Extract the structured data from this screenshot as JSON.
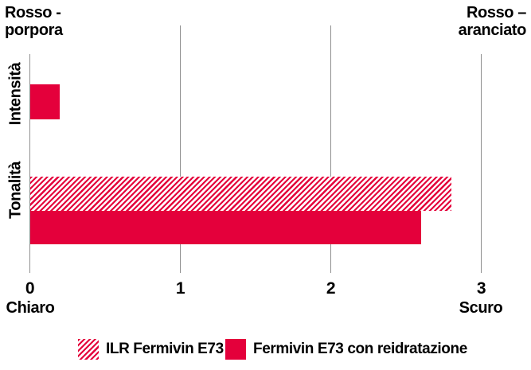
{
  "colors": {
    "accent_red": "#e4003b",
    "grid_gray": "#8f8f8f",
    "text": "#000000"
  },
  "chart_data": {
    "type": "bar",
    "orientation": "horizontal",
    "categories": [
      "Intensità",
      "Tonalità"
    ],
    "series": [
      {
        "name": "ILR Fermivin E73",
        "style": "hatched",
        "values": [
          0,
          2.8
        ]
      },
      {
        "name": "Fermivin E73 con reidratazione",
        "style": "solid",
        "values": [
          0.2,
          2.6
        ]
      }
    ],
    "xlim": [
      0,
      3
    ],
    "xticks": [
      "0",
      "1",
      "2",
      "3"
    ],
    "x_end_labels": {
      "min": "Chiaro",
      "max": "Scuro"
    },
    "annotations": {
      "top_left_line1": "Rosso -",
      "top_left_line2": "porpora",
      "top_right_line1": "Rosso –",
      "top_right_line2": "aranciato"
    },
    "grid": "vertical-only",
    "legend_position": "bottom"
  }
}
